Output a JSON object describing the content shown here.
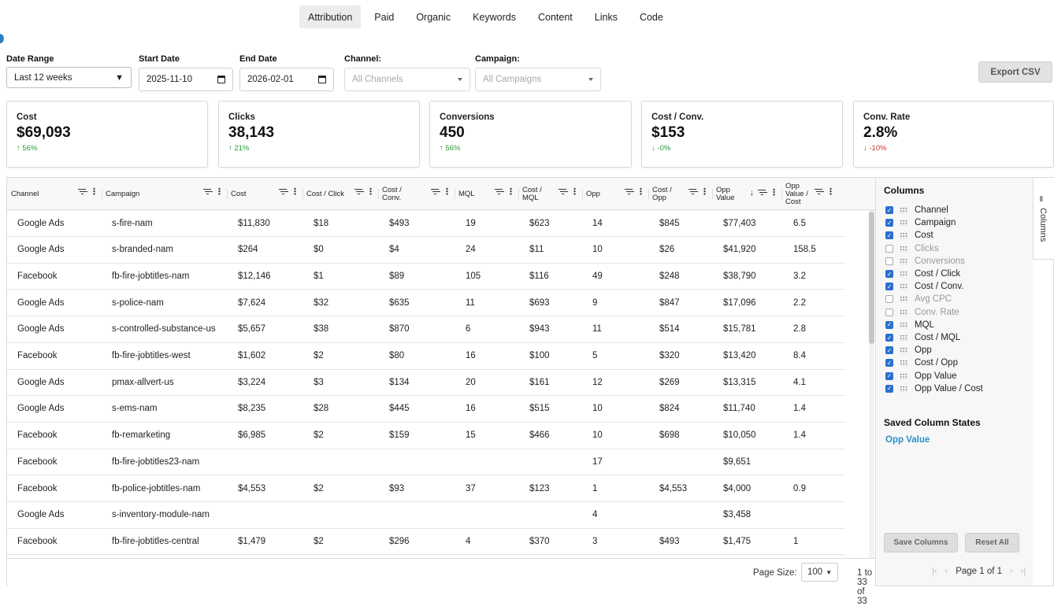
{
  "tabs": [
    {
      "label": "Attribution",
      "active": true
    },
    {
      "label": "Paid"
    },
    {
      "label": "Organic"
    },
    {
      "label": "Keywords"
    },
    {
      "label": "Content"
    },
    {
      "label": "Links"
    },
    {
      "label": "Code"
    }
  ],
  "filters": {
    "date_range_label": "Date Range",
    "date_range_value": "Last 12 weeks",
    "start_label": "Start Date",
    "start_value": "2025-11-10",
    "end_label": "End Date",
    "end_value": "2026-02-01",
    "channel_label": "Channel:",
    "channel_placeholder": "All Channels",
    "campaign_label": "Campaign:",
    "campaign_placeholder": "All Campaigns",
    "export_label": "Export CSV"
  },
  "kpis": [
    {
      "label": "Cost",
      "value": "$69,093",
      "change": "↑ 56%",
      "dir": "up"
    },
    {
      "label": "Clicks",
      "value": "38,143",
      "change": "↑ 21%",
      "dir": "up"
    },
    {
      "label": "Conversions",
      "value": "450",
      "change": "↑ 56%",
      "dir": "up"
    },
    {
      "label": "Cost / Conv.",
      "value": "$153",
      "change": "↓ -0%",
      "dir": "up"
    },
    {
      "label": "Conv. Rate",
      "value": "2.8%",
      "change": "↓ -10%",
      "dir": "down"
    }
  ],
  "grid": {
    "headers": [
      "Channel",
      "Campaign",
      "Cost",
      "Cost / Click",
      "Cost / Conv.",
      "MQL",
      "Cost / MQL",
      "Opp",
      "Cost / Opp",
      "Opp Value",
      "Opp Value / Cost"
    ],
    "rows": [
      [
        "Google Ads",
        "s-fire-nam",
        "$11,830",
        "$18",
        "$493",
        "19",
        "$623",
        "14",
        "$845",
        "$77,403",
        "6.5"
      ],
      [
        "Google Ads",
        "s-branded-nam",
        "$264",
        "$0",
        "$4",
        "24",
        "$11",
        "10",
        "$26",
        "$41,920",
        "158.5"
      ],
      [
        "Facebook",
        "fb-fire-jobtitles-nam",
        "$12,146",
        "$1",
        "$89",
        "105",
        "$116",
        "49",
        "$248",
        "$38,790",
        "3.2"
      ],
      [
        "Google Ads",
        "s-police-nam",
        "$7,624",
        "$32",
        "$635",
        "11",
        "$693",
        "9",
        "$847",
        "$17,096",
        "2.2"
      ],
      [
        "Google Ads",
        "s-controlled-substance-us",
        "$5,657",
        "$38",
        "$870",
        "6",
        "$943",
        "11",
        "$514",
        "$15,781",
        "2.8"
      ],
      [
        "Facebook",
        "fb-fire-jobtitles-west",
        "$1,602",
        "$2",
        "$80",
        "16",
        "$100",
        "5",
        "$320",
        "$13,420",
        "8.4"
      ],
      [
        "Google Ads",
        "pmax-allvert-us",
        "$3,224",
        "$3",
        "$134",
        "20",
        "$161",
        "12",
        "$269",
        "$13,315",
        "4.1"
      ],
      [
        "Google Ads",
        "s-ems-nam",
        "$8,235",
        "$28",
        "$445",
        "16",
        "$515",
        "10",
        "$824",
        "$11,740",
        "1.4"
      ],
      [
        "Facebook",
        "fb-remarketing",
        "$6,985",
        "$2",
        "$159",
        "15",
        "$466",
        "10",
        "$698",
        "$10,050",
        "1.4"
      ],
      [
        "Facebook",
        "fb-fire-jobtitles23-nam",
        "",
        "",
        "",
        "",
        "",
        "17",
        "",
        "$9,651",
        ""
      ],
      [
        "Facebook",
        "fb-police-jobtitles-nam",
        "$4,553",
        "$2",
        "$93",
        "37",
        "$123",
        "1",
        "$4,553",
        "$4,000",
        "0.9"
      ],
      [
        "Google Ads",
        "s-inventory-module-nam",
        "",
        "",
        "",
        "",
        "",
        "4",
        "",
        "$3,458",
        ""
      ],
      [
        "Facebook",
        "fb-fire-jobtitles-central",
        "$1,479",
        "$2",
        "$296",
        "4",
        "$370",
        "3",
        "$493",
        "$1,475",
        "1"
      ]
    ],
    "footer": {
      "page_size_label": "Page Size:",
      "page_size_value": "100",
      "range_text": "1 to 33 of 33",
      "page_text": "Page 1 of 1"
    }
  },
  "column_panel": {
    "title": "Columns",
    "items": [
      {
        "label": "Channel",
        "checked": true
      },
      {
        "label": "Campaign",
        "checked": true
      },
      {
        "label": "Cost",
        "checked": true
      },
      {
        "label": "Clicks",
        "checked": false
      },
      {
        "label": "Conversions",
        "checked": false
      },
      {
        "label": "Cost / Click",
        "checked": true
      },
      {
        "label": "Cost / Conv.",
        "checked": true
      },
      {
        "label": "Avg CPC",
        "checked": false
      },
      {
        "label": "Conv. Rate",
        "checked": false
      },
      {
        "label": "MQL",
        "checked": true
      },
      {
        "label": "Cost / MQL",
        "checked": true
      },
      {
        "label": "Opp",
        "checked": true
      },
      {
        "label": "Cost / Opp",
        "checked": true
      },
      {
        "label": "Opp Value",
        "checked": true
      },
      {
        "label": "Opp Value / Cost",
        "checked": true
      }
    ],
    "saved_title": "Saved Column States",
    "saved_link": "Opp Value",
    "save_button": "Save Columns",
    "reset_button": "Reset All",
    "side_tab": "Columns"
  },
  "colors": {
    "accent": "#2b6fcf",
    "up": "#2a9a3a",
    "down": "#d03030",
    "link": "#2b8fc8"
  }
}
